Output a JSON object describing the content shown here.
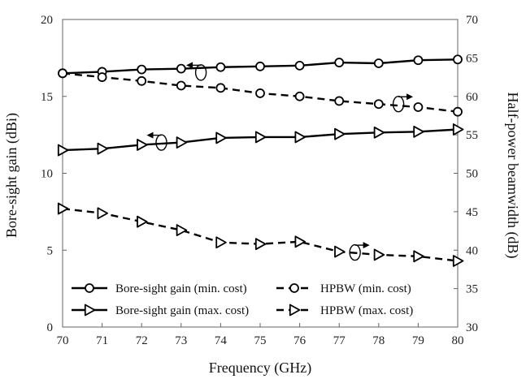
{
  "chart_data": {
    "type": "line",
    "x": [
      70,
      71,
      72,
      73,
      74,
      75,
      76,
      77,
      78,
      79,
      80
    ],
    "xlabel": "Frequency (GHz)",
    "ylabel_left": "Bore-sight gain (dBi)",
    "ylabel_right": "Half-power beamwidth (dB)",
    "xlim": [
      70,
      80
    ],
    "ylim_left": [
      0,
      20
    ],
    "ylim_right": [
      30,
      70
    ],
    "x_ticks": [
      "70",
      "71",
      "72",
      "73",
      "74",
      "75",
      "76",
      "77",
      "78",
      "79",
      "80"
    ],
    "y_ticks_left": [
      "0",
      "5",
      "10",
      "15",
      "20"
    ],
    "y_ticks_right": [
      "30",
      "35",
      "40",
      "45",
      "50",
      "55",
      "60",
      "65",
      "70"
    ],
    "grid": false,
    "legend_position": "bottom",
    "series": [
      {
        "name": "Bore-sight gain (min. cost)",
        "axis": "left",
        "style": "solid",
        "marker": "circle",
        "values": [
          16.5,
          16.6,
          16.75,
          16.8,
          16.9,
          16.95,
          17.0,
          17.2,
          17.15,
          17.35,
          17.4
        ]
      },
      {
        "name": "HPBW (min. cost)",
        "axis": "right",
        "style": "dashed",
        "marker": "circle",
        "values": [
          63.0,
          62.5,
          62.0,
          61.4,
          61.1,
          60.4,
          60.0,
          59.4,
          59.0,
          58.6,
          58.0
        ]
      },
      {
        "name": "Bore-sight gain (max. cost)",
        "axis": "left",
        "style": "solid",
        "marker": "triangle",
        "values": [
          11.5,
          11.6,
          11.85,
          12.0,
          12.3,
          12.35,
          12.35,
          12.55,
          12.65,
          12.7,
          12.85
        ]
      },
      {
        "name": "HPBW (max. cost)",
        "axis": "right",
        "style": "dashed",
        "marker": "triangle",
        "values": [
          45.4,
          44.8,
          43.7,
          42.6,
          41.0,
          40.8,
          41.1,
          39.8,
          39.4,
          39.2,
          38.6
        ]
      }
    ],
    "legend": [
      {
        "label": "Bore-sight gain (min. cost)",
        "style": "solid",
        "marker": "circle"
      },
      {
        "label": "HPBW (min. cost)",
        "style": "dashed",
        "marker": "circle"
      },
      {
        "label": "Bore-sight gain (max. cost)",
        "style": "solid",
        "marker": "triangle"
      },
      {
        "label": "HPBW (max. cost)",
        "style": "dashed",
        "marker": "triangle"
      }
    ],
    "annotations": [
      {
        "name": "axis-indicator-gain-min",
        "x": 73.5,
        "y": 16.55,
        "axis": "left",
        "arrow": "left"
      },
      {
        "name": "axis-indicator-hpbw-min",
        "x": 78.5,
        "y": 59.0,
        "axis": "right",
        "arrow": "right"
      },
      {
        "name": "axis-indicator-gain-max",
        "x": 72.5,
        "y": 12.0,
        "axis": "left",
        "arrow": "left"
      },
      {
        "name": "axis-indicator-hpbw-max",
        "x": 77.4,
        "y": 39.7,
        "axis": "right",
        "arrow": "right"
      }
    ]
  }
}
